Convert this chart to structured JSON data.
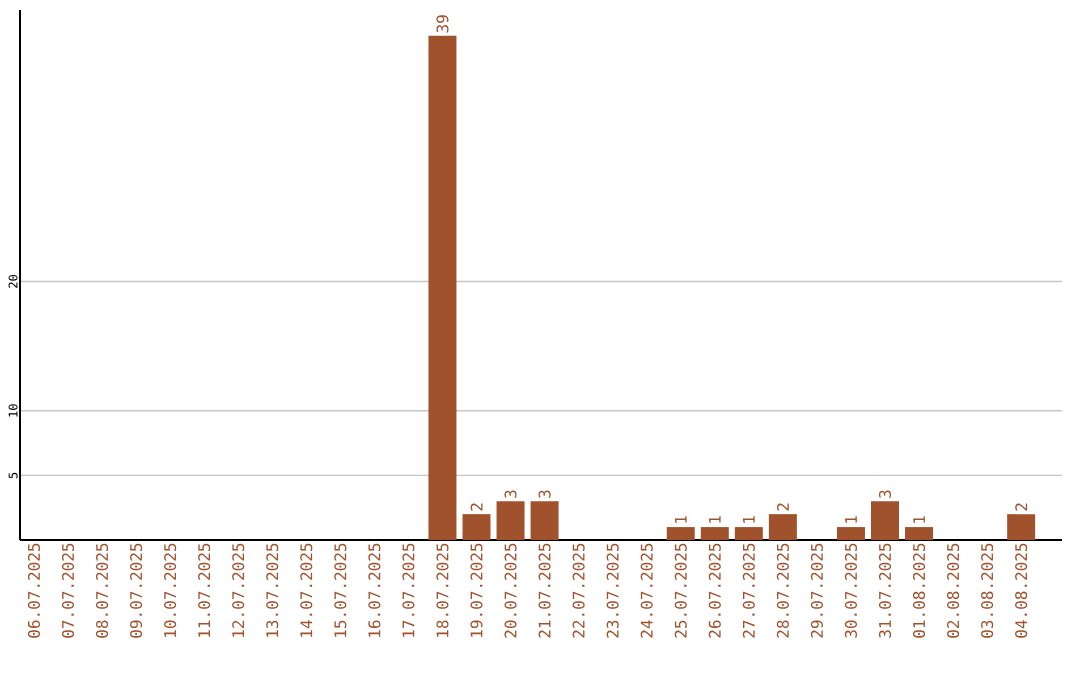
{
  "chart_data": {
    "type": "bar",
    "color": "#a0522d",
    "categories": [
      "06.07.2025",
      "07.07.2025",
      "08.07.2025",
      "09.07.2025",
      "10.07.2025",
      "11.07.2025",
      "12.07.2025",
      "13.07.2025",
      "14.07.2025",
      "15.07.2025",
      "16.07.2025",
      "17.07.2025",
      "18.07.2025",
      "19.07.2025",
      "20.07.2025",
      "21.07.2025",
      "22.07.2025",
      "23.07.2025",
      "24.07.2025",
      "25.07.2025",
      "26.07.2025",
      "27.07.2025",
      "28.07.2025",
      "29.07.2025",
      "30.07.2025",
      "31.07.2025",
      "01.08.2025",
      "02.08.2025",
      "03.08.2025",
      "04.08.2025"
    ],
    "values": [
      0,
      0,
      0,
      0,
      0,
      0,
      0,
      0,
      0,
      0,
      0,
      0,
      39,
      2,
      3,
      3,
      0,
      0,
      0,
      1,
      1,
      1,
      2,
      0,
      1,
      3,
      1,
      0,
      0,
      2
    ],
    "value_labels": [
      null,
      null,
      null,
      null,
      null,
      null,
      null,
      null,
      null,
      null,
      null,
      null,
      "39",
      "2",
      "3",
      "3",
      null,
      null,
      null,
      "1",
      "1",
      "1",
      "2",
      null,
      "1",
      "3",
      "1",
      null,
      null,
      "2"
    ],
    "ylim": [
      0,
      41
    ],
    "yticks": [
      5,
      10,
      20
    ],
    "grid": "y"
  }
}
